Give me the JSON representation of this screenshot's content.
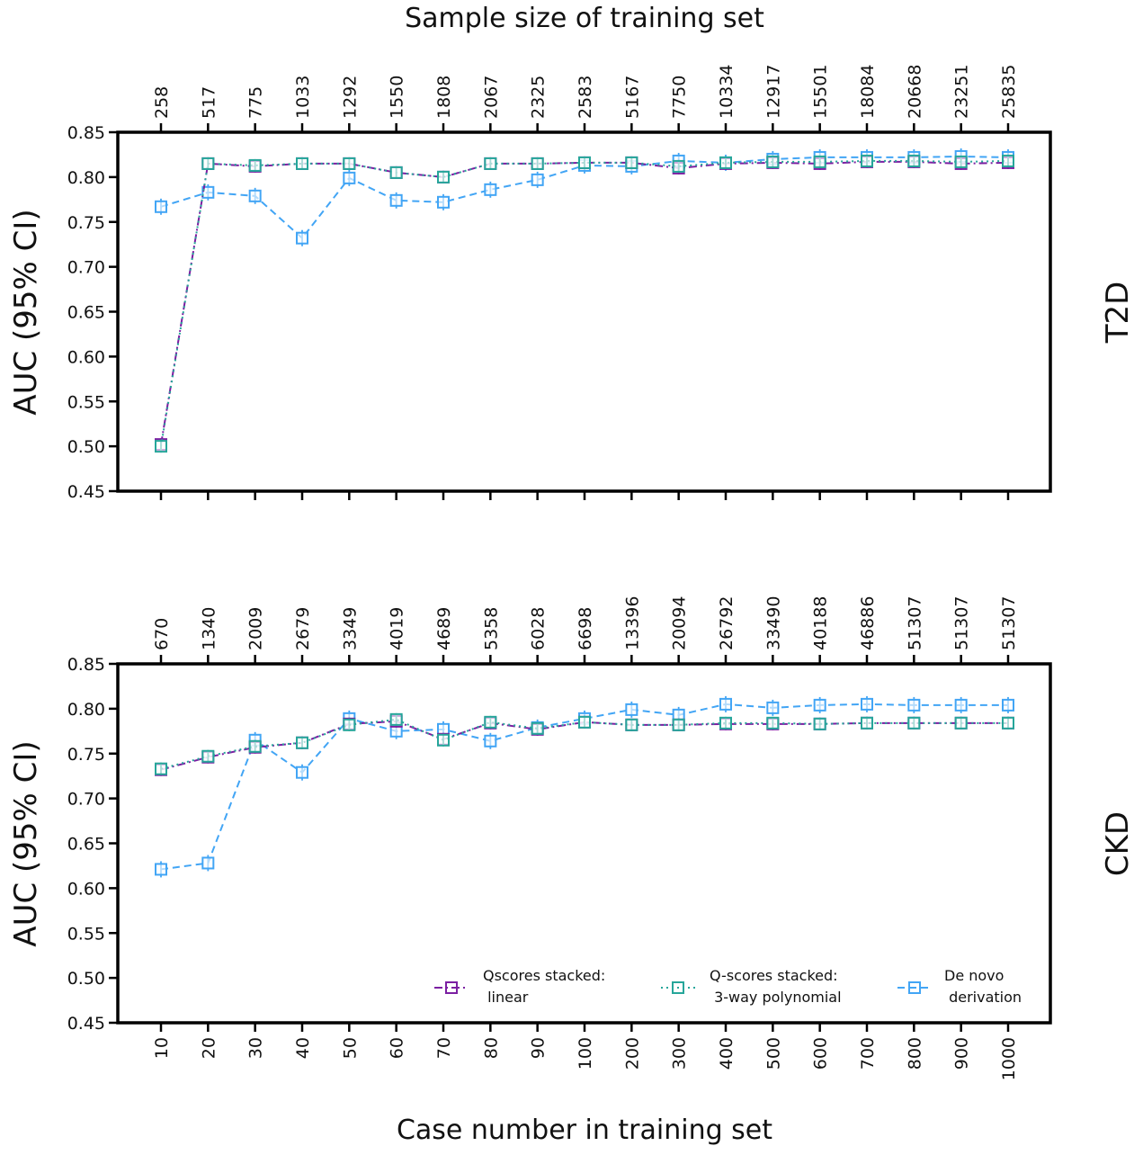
{
  "figure": {
    "top_axis_title": "Sample size of training set",
    "bottom_axis_title": "Case number in training set",
    "colors": {
      "linear": "#7b1fa2",
      "poly": "#26a69a",
      "denovo": "#42a5f5",
      "axis": "#000000"
    },
    "legend": {
      "linear": [
        "Qscores stacked:",
        " linear"
      ],
      "poly": [
        "Q-scores stacked:",
        " 3-way polynomial"
      ],
      "denovo": [
        "De novo",
        " derivation"
      ]
    }
  },
  "chart_data": [
    {
      "type": "line",
      "panel": "T2D",
      "ylabel": "AUC (95% CI)",
      "ylim": [
        0.45,
        0.85
      ],
      "yticks": [
        "0.85",
        "0.80",
        "0.75",
        "0.70",
        "0.65",
        "0.60",
        "0.55",
        "0.50",
        "0.45"
      ],
      "x": [
        "10",
        "20",
        "30",
        "40",
        "50",
        "60",
        "70",
        "80",
        "90",
        "100",
        "200",
        "300",
        "400",
        "500",
        "600",
        "700",
        "800",
        "900",
        "1000"
      ],
      "top_ticks": [
        "258",
        "517",
        "775",
        "1033",
        "1292",
        "1550",
        "1808",
        "2067",
        "2325",
        "2583",
        "5167",
        "7750",
        "10334",
        "12917",
        "15501",
        "18084",
        "20668",
        "23251",
        "25835"
      ],
      "series": [
        {
          "key": "linear",
          "values": [
            0.502,
            0.815,
            0.812,
            0.815,
            0.815,
            0.805,
            0.8,
            0.815,
            0.815,
            0.816,
            0.816,
            0.81,
            0.815,
            0.816,
            0.815,
            0.817,
            0.817,
            0.815,
            0.816
          ]
        },
        {
          "key": "poly",
          "values": [
            0.5,
            0.815,
            0.813,
            0.815,
            0.815,
            0.805,
            0.8,
            0.815,
            0.815,
            0.816,
            0.816,
            0.812,
            0.816,
            0.817,
            0.817,
            0.818,
            0.818,
            0.817,
            0.818
          ]
        },
        {
          "key": "denovo",
          "values": [
            0.767,
            0.783,
            0.779,
            0.732,
            0.799,
            0.774,
            0.772,
            0.786,
            0.797,
            0.813,
            0.812,
            0.818,
            0.816,
            0.82,
            0.822,
            0.822,
            0.822,
            0.823,
            0.822
          ]
        }
      ]
    },
    {
      "type": "line",
      "panel": "CKD",
      "ylabel": "AUC (95% CI)",
      "ylim": [
        0.45,
        0.85
      ],
      "yticks": [
        "0.85",
        "0.80",
        "0.75",
        "0.70",
        "0.65",
        "0.60",
        "0.55",
        "0.50",
        "0.45"
      ],
      "x": [
        "10",
        "20",
        "30",
        "40",
        "50",
        "60",
        "70",
        "80",
        "90",
        "100",
        "200",
        "300",
        "400",
        "500",
        "600",
        "700",
        "800",
        "900",
        "1000"
      ],
      "top_ticks": [
        "670",
        "1340",
        "2009",
        "2679",
        "3349",
        "4019",
        "4689",
        "5358",
        "6028",
        "6698",
        "13396",
        "20094",
        "26792",
        "33490",
        "40188",
        "46886",
        "51307",
        "51307",
        "51307"
      ],
      "series": [
        {
          "key": "linear",
          "values": [
            0.732,
            0.746,
            0.757,
            0.762,
            0.783,
            0.786,
            0.766,
            0.784,
            0.777,
            0.785,
            0.782,
            0.782,
            0.783,
            0.783,
            0.783,
            0.784,
            0.784,
            0.784,
            0.784
          ]
        },
        {
          "key": "poly",
          "values": [
            0.733,
            0.747,
            0.758,
            0.762,
            0.782,
            0.788,
            0.765,
            0.785,
            0.778,
            0.785,
            0.782,
            0.782,
            0.784,
            0.784,
            0.783,
            0.784,
            0.784,
            0.784,
            0.784
          ]
        },
        {
          "key": "denovo",
          "values": [
            0.621,
            0.628,
            0.765,
            0.729,
            0.789,
            0.775,
            0.777,
            0.764,
            0.779,
            0.789,
            0.799,
            0.793,
            0.805,
            0.801,
            0.804,
            0.805,
            0.804,
            0.804,
            0.804
          ]
        }
      ]
    }
  ]
}
